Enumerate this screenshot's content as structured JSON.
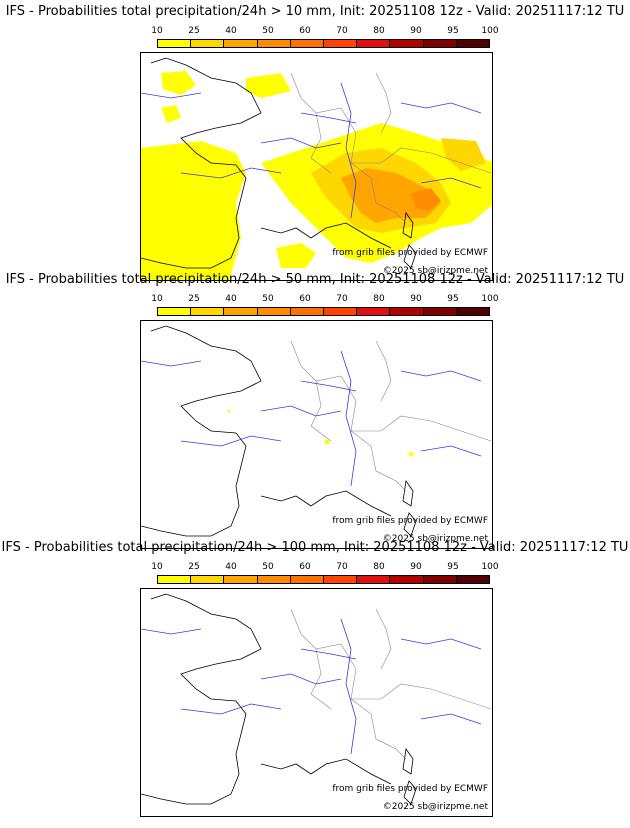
{
  "legend": {
    "labels": [
      "10",
      "25",
      "40",
      "50",
      "60",
      "70",
      "80",
      "90",
      "95",
      "100"
    ],
    "colors": [
      "#ffff00",
      "#ffd700",
      "#ffa500",
      "#ff8c00",
      "#ff7000",
      "#ff4500",
      "#e01010",
      "#b00000",
      "#800000",
      "#500000"
    ]
  },
  "panels": [
    {
      "title": "IFS - Probabilities total precipitation/24h > 10 mm, Init: 20251108 12z - Valid: 20251117:12 TU",
      "credit_ecmwf": "from grib files provided by ECMWF",
      "credit_copyright": "©2025 sb@irizpme.net"
    },
    {
      "title": "IFS - Probabilities total precipitation/24h > 50 mm, Init: 20251108 12z - Valid: 20251117:12 TU",
      "credit_ecmwf": "from grib files provided by ECMWF",
      "credit_copyright": "©2025 sb@irizpme.net"
    },
    {
      "title": "IFS - Probabilities total precipitation/24h > 100 mm, Init: 20251108 12z - Valid: 20251117:12 TU",
      "credit_ecmwf": "from grib files provided by ECMWF",
      "credit_copyright": "©2025 sb@irizpme.net"
    }
  ]
}
